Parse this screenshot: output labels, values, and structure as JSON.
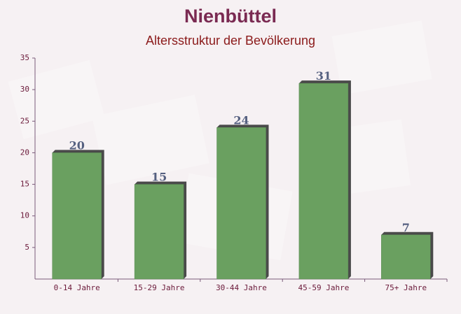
{
  "chart_data": {
    "type": "bar",
    "title": "Nienbüttel",
    "subtitle": "Altersstruktur der Bevölkerung",
    "categories": [
      "0-14 Jahre",
      "15-29 Jahre",
      "30-44 Jahre",
      "45-59 Jahre",
      "75+ Jahre"
    ],
    "values": [
      20,
      15,
      24,
      31,
      7
    ],
    "color": "#6aa060",
    "ylim": [
      0,
      35
    ],
    "yticks": [
      5,
      10,
      15,
      20,
      25,
      30,
      35
    ],
    "grid": false
  }
}
